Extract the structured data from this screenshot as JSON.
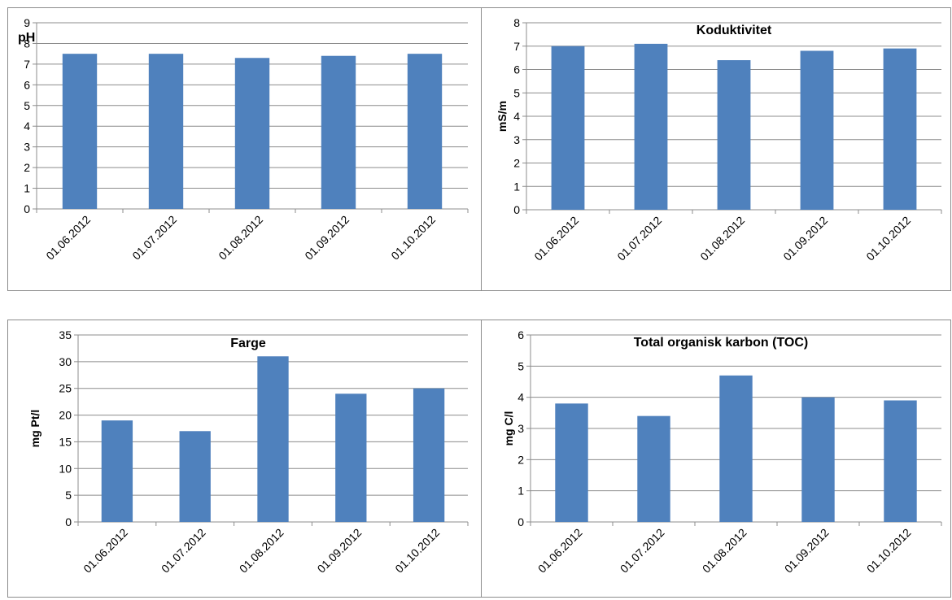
{
  "chart_data": [
    {
      "type": "bar",
      "title": "pH",
      "ylabel": "",
      "categories": [
        "01.06.2012",
        "01.07.2012",
        "01.08.2012",
        "01.09.2012",
        "01.10.2012"
      ],
      "values": [
        7.5,
        7.5,
        7.3,
        7.4,
        7.5
      ],
      "ylim": [
        0,
        9
      ],
      "yticks": [
        0,
        1,
        2,
        3,
        4,
        5,
        6,
        7,
        8,
        9
      ],
      "grid": true,
      "title_position": "top-left",
      "bar_color": "#4f81bd"
    },
    {
      "type": "bar",
      "title": "Koduktivitet",
      "ylabel": "mS/m",
      "categories": [
        "01.06.2012",
        "01.07.2012",
        "01.08.2012",
        "01.09.2012",
        "01.10.2012"
      ],
      "values": [
        7.0,
        7.1,
        6.4,
        6.8,
        6.9
      ],
      "ylim": [
        0,
        8
      ],
      "yticks": [
        0,
        1,
        2,
        3,
        4,
        5,
        6,
        7,
        8
      ],
      "grid": true,
      "title_position": "top-center",
      "bar_color": "#4f81bd"
    },
    {
      "type": "bar",
      "title": "Farge",
      "ylabel": "mg Pt/l",
      "categories": [
        "01.06.2012",
        "01.07.2012",
        "01.08.2012",
        "01.09.2012",
        "01.10.2012"
      ],
      "values": [
        19,
        17,
        31,
        24,
        25
      ],
      "ylim": [
        0,
        35
      ],
      "yticks": [
        0,
        5,
        10,
        15,
        20,
        25,
        30,
        35
      ],
      "grid": true,
      "title_position": "top-center",
      "bar_color": "#4f81bd"
    },
    {
      "type": "bar",
      "title": "Total organisk karbon (TOC)",
      "ylabel": "mg C/l",
      "categories": [
        "01.06.2012",
        "01.07.2012",
        "01.08.2012",
        "01.09.2012",
        "01.10.2012"
      ],
      "values": [
        3.8,
        3.4,
        4.7,
        4.0,
        3.9
      ],
      "ylim": [
        0,
        6
      ],
      "yticks": [
        0,
        1,
        2,
        3,
        4,
        5,
        6
      ],
      "grid": true,
      "title_position": "top-center",
      "bar_color": "#4f81bd"
    }
  ]
}
